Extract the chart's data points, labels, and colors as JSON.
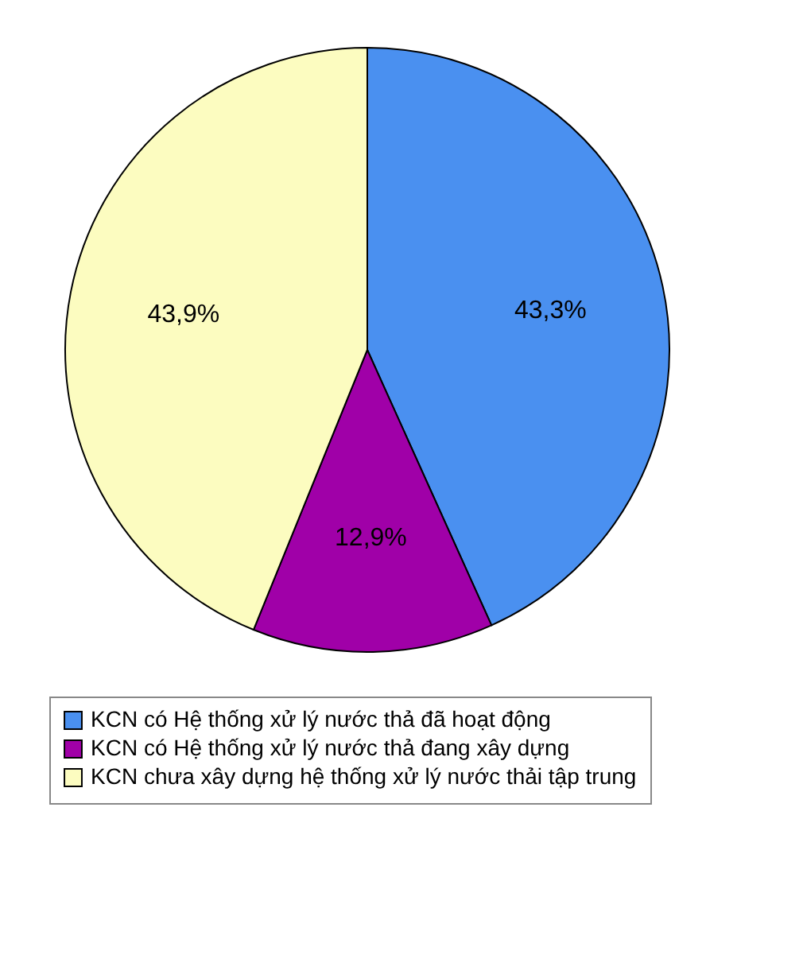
{
  "chart_data": {
    "type": "pie",
    "categories": [
      "KCN có Hệ thống xử lý nước thả đã hoạt động",
      "KCN có Hệ thống xử lý nước thả đang xây dựng",
      "KCN chưa xây dựng hệ thống xử lý nước thải tập trung"
    ],
    "values": [
      43.3,
      12.9,
      43.9
    ],
    "colors": [
      "#4a90f0",
      "#a000a8",
      "#fcfcc0"
    ],
    "value_labels": [
      "43,3%",
      "12,9%",
      "43,9%"
    ],
    "legend": "bottom"
  }
}
